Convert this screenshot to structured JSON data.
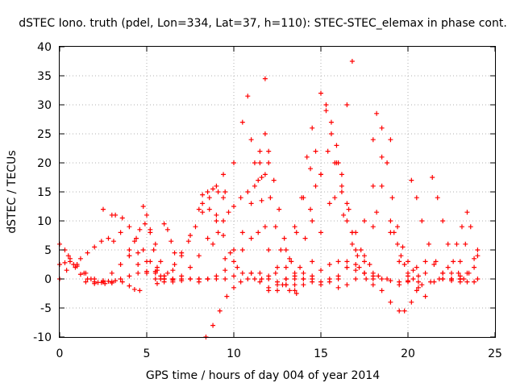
{
  "chart_data": {
    "type": "scatter",
    "title": "dSTEC Iono. truth (pdel, Lon=334, Lat=37, h=110): STEC-STEC_elemax in phase cont.",
    "xlabel": "GPS time / hours of day 004 of year 2014",
    "ylabel": "dSTEC  / TECUs",
    "xlim": [
      0,
      25
    ],
    "ylim": [
      -10,
      40
    ],
    "x_ticks": [
      "0",
      "5",
      "10",
      "15",
      "20",
      "25"
    ],
    "y_ticks": [
      "-10",
      "-5",
      "0",
      "5",
      "10",
      "15",
      "20",
      "25",
      "30",
      "35",
      "40"
    ],
    "grid": true,
    "marker": "+",
    "color": "#ff0000",
    "series": [
      {
        "x": [
          0,
          0.3,
          0.6,
          0.9,
          1.2,
          1.6,
          2.0,
          2.4,
          2.8,
          3.2,
          3.6,
          4.0,
          4.3,
          4.6
        ],
        "y": [
          6,
          5,
          3.5,
          2,
          0.8,
          0,
          -0.5,
          -0.6,
          -0.4,
          -0.3,
          -0.5,
          -1.2,
          -1.8,
          -2
        ]
      },
      {
        "x": [
          0,
          0.4,
          0.8,
          1.2,
          1.6,
          2.0,
          2.4,
          2.8,
          3.1
        ],
        "y": [
          0,
          1.5,
          2.5,
          3.5,
          4.5,
          5.5,
          6.5,
          7,
          6.5
        ]
      },
      {
        "x": [
          0,
          0.3,
          0.6,
          1.0,
          1.4,
          1.8,
          2.2,
          2.6,
          3.0
        ],
        "y": [
          2.5,
          2.8,
          3,
          2.2,
          1,
          0,
          -0.6,
          -0.8,
          -0.7
        ]
      },
      {
        "x": [
          0.5,
          1.0,
          1.5,
          2.0,
          2.5,
          3.0,
          3.5,
          4.0,
          4.5,
          5.0,
          5.5
        ],
        "y": [
          4,
          2.5,
          1,
          0,
          -0.5,
          -0.5,
          0,
          0.5,
          1,
          1.3,
          1.3
        ]
      },
      {
        "x": [
          1.5,
          2.0,
          2.5,
          3.0,
          3.5,
          4.0,
          4.5,
          5.0,
          5.5,
          6.0,
          6.5
        ],
        "y": [
          -0.5,
          -0.8,
          -0.3,
          1,
          2.5,
          4,
          4.5,
          3,
          1,
          0,
          -0.2
        ]
      },
      {
        "x": [
          2.5,
          3.0,
          3.5,
          4.0,
          4.5,
          5.0,
          5.5,
          6.0,
          6.5,
          7.0,
          7.5,
          8.0
        ],
        "y": [
          12,
          11,
          8,
          5,
          2.5,
          1,
          0,
          -0.5,
          -0.5,
          -0.3,
          0,
          0
        ]
      },
      {
        "x": [
          3.2,
          3.6,
          4.0,
          4.4,
          4.8,
          5.2,
          5.6,
          6.0,
          6.5
        ],
        "y": [
          11,
          10.5,
          9,
          7,
          5,
          3,
          1.5,
          0.5,
          0
        ]
      },
      {
        "x": [
          4.0,
          4.3,
          4.6,
          4.9,
          5.2,
          5.5,
          5.8,
          6.0
        ],
        "y": [
          4,
          6.5,
          8.5,
          9.5,
          8.5,
          6,
          3,
          0.5
        ]
      },
      {
        "x": [
          4.8,
          5.0,
          5.2,
          5.4,
          5.6,
          5.8,
          6.0,
          6.5,
          7.0,
          7.5,
          8.0,
          8.5
        ],
        "y": [
          12.5,
          11,
          8,
          5,
          2,
          0.5,
          0,
          0,
          0,
          0,
          0,
          0
        ]
      },
      {
        "x": [
          6.0,
          6.2,
          6.4,
          6.6
        ],
        "y": [
          9.5,
          8.5,
          6.5,
          4.5
        ]
      },
      {
        "x": [
          5.6,
          6.0,
          6.5,
          7.0,
          7.5,
          8.0,
          8.2
        ],
        "y": [
          -0.8,
          0,
          1.5,
          4,
          7.5,
          12,
          14.5
        ]
      },
      {
        "x": [
          5.8,
          6.2,
          6.6,
          7.0,
          7.4,
          7.8,
          8.2,
          8.6,
          9.0,
          9.4
        ],
        "y": [
          0,
          1,
          2.5,
          4.5,
          6.5,
          9,
          11.5,
          14,
          16,
          18
        ]
      },
      {
        "x": [
          6.5,
          7.0,
          7.5,
          8.0,
          8.5,
          9.0,
          9.5,
          10.0,
          10.5,
          10.8
        ],
        "y": [
          0,
          0.5,
          2,
          4,
          7,
          11,
          15,
          20,
          27,
          31.5
        ]
      },
      {
        "x": [
          8.5,
          9.0,
          9.5,
          10.0,
          10.5,
          11.0,
          11.5,
          12.0,
          12.5,
          13.0
        ],
        "y": [
          0,
          0,
          0,
          0.5,
          1,
          1,
          1,
          0.5,
          -0.5,
          -1
        ]
      },
      {
        "x": [
          8.4,
          8.8,
          9.2,
          9.6,
          10.0,
          10.4,
          10.8,
          11.2,
          11.6,
          12.0
        ],
        "y": [
          -10,
          -8,
          -5.5,
          -3,
          -1.5,
          -0.5,
          0,
          0,
          0,
          0
        ]
      },
      {
        "x": [
          8.2,
          8.6,
          9.0,
          9.4,
          9.8,
          10.2
        ],
        "y": [
          13,
          12,
          10,
          7.5,
          4.5,
          2
        ]
      },
      {
        "x": [
          8.5,
          8.8,
          9.1,
          9.4
        ],
        "y": [
          15,
          15.5,
          15,
          14
        ]
      },
      {
        "x": [
          8.8,
          9.1,
          9.4,
          9.7,
          10.0,
          10.4,
          10.8,
          11.2,
          11.6,
          12.0
        ],
        "y": [
          6,
          8,
          10,
          11.5,
          12.5,
          14,
          15,
          16,
          17.5,
          20
        ]
      },
      {
        "x": [
          8.0,
          8.5,
          9.0,
          9.5,
          10.0,
          10.5,
          11.0,
          11.4
        ],
        "y": [
          -0.5,
          0,
          0.5,
          1.5,
          3,
          5,
          7,
          8
        ]
      },
      {
        "x": [
          9.5,
          10.0,
          10.5,
          11.0,
          11.5,
          11.8
        ],
        "y": [
          3.5,
          5,
          8,
          13,
          22,
          34.5
        ]
      },
      {
        "x": [
          11.0,
          11.2,
          11.4,
          11.6,
          11.8,
          12.0,
          12.4,
          12.8,
          13.2,
          13.6
        ],
        "y": [
          24,
          20,
          17,
          13.5,
          9,
          5,
          1,
          -1,
          -2,
          -2.5
        ]
      },
      {
        "x": [
          11.5,
          11.8,
          12.1,
          12.4,
          12.7,
          13.0
        ],
        "y": [
          20,
          18,
          14,
          9,
          5,
          2
        ]
      },
      {
        "x": [
          11.8,
          12.0,
          12.3,
          12.6,
          12.9,
          13.2,
          13.5
        ],
        "y": [
          25,
          22,
          17,
          12,
          7,
          3.5,
          1
        ]
      },
      {
        "x": [
          11.0,
          11.5,
          12.0,
          12.5,
          13.0,
          13.5,
          14.0,
          14.5,
          15.0
        ],
        "y": [
          1,
          -0.5,
          -1.5,
          -2,
          -1,
          0,
          1,
          0.5,
          -1
        ]
      },
      {
        "x": [
          12.0,
          12.5,
          13.0,
          13.5,
          14.0,
          14.5,
          15.0,
          15.5,
          16.0
        ],
        "y": [
          -2,
          -1,
          0,
          0.5,
          0,
          -0.5,
          -0.5,
          0,
          0.5
        ]
      },
      {
        "x": [
          12.5,
          13.0,
          13.5,
          14.0,
          14.4,
          14.7
        ],
        "y": [
          2,
          5,
          9,
          14,
          19,
          22
        ]
      },
      {
        "x": [
          13.0,
          13.3,
          13.6,
          13.9,
          14.2,
          14.5
        ],
        "y": [
          0,
          3,
          8,
          14,
          21,
          26
        ]
      },
      {
        "x": [
          13.5,
          13.8,
          14.1,
          14.4,
          14.7,
          15.0
        ],
        "y": [
          -1,
          2,
          7,
          12,
          16,
          18
        ]
      },
      {
        "x": [
          13.5,
          14.0,
          14.5,
          15.0,
          15.5,
          16.0,
          16.5,
          17.0,
          17.5,
          18.0
        ],
        "y": [
          -2,
          -1,
          0,
          1.5,
          2.5,
          3,
          3,
          2.5,
          1,
          0
        ]
      },
      {
        "x": [
          14.0,
          14.5,
          15.0,
          15.5,
          16.0,
          16.5,
          16.8
        ],
        "y": [
          0,
          3,
          8,
          13,
          20,
          30,
          37.5
        ]
      },
      {
        "x": [
          14.5,
          15.0,
          15.4,
          15.8,
          16.2,
          16.6,
          17.0,
          17.5,
          18.0
        ],
        "y": [
          10,
          18,
          22,
          20,
          16,
          12,
          8,
          4,
          1
        ]
      },
      {
        "x": [
          15.0,
          15.3,
          15.6,
          15.9,
          16.2,
          16.5,
          16.8,
          17.2,
          17.6
        ],
        "y": [
          32,
          29,
          25,
          20,
          15,
          10,
          6,
          2,
          0
        ]
      },
      {
        "x": [
          15.3,
          15.6,
          15.9,
          16.2,
          16.5,
          16.8,
          17.1,
          17.5
        ],
        "y": [
          30,
          27,
          23,
          18,
          13,
          8,
          4,
          1
        ]
      },
      {
        "x": [
          15.5,
          16.0,
          16.5,
          17.0,
          17.5,
          18.0,
          18.5,
          19.0
        ],
        "y": [
          -0.5,
          0,
          2,
          5,
          10,
          16,
          21,
          24
        ]
      },
      {
        "x": [
          16.0,
          16.5,
          17.0,
          17.5,
          18.0,
          18.2
        ],
        "y": [
          -1.5,
          -1,
          0,
          3,
          9,
          11.5
        ]
      },
      {
        "x": [
          15.8,
          16.3,
          16.8,
          17.3,
          17.8,
          18.3,
          18.8
        ],
        "y": [
          14,
          11,
          8,
          5,
          2.5,
          0.5,
          0
        ]
      },
      {
        "x": [
          16.5,
          17.0,
          17.5,
          18.0,
          18.5,
          19.0,
          19.5,
          20.0
        ],
        "y": [
          2,
          1.5,
          1,
          0.5,
          0,
          -0.3,
          -0.5,
          -0.3
        ]
      },
      {
        "x": [
          18.2,
          18.5,
          18.8,
          19.1,
          19.4,
          19.7,
          20.0,
          20.3,
          20.6
        ],
        "y": [
          28.5,
          26,
          20,
          14,
          9,
          5.5,
          3,
          1.5,
          0.5
        ]
      },
      {
        "x": [
          18.0,
          18.5,
          19.0,
          19.5,
          20.0,
          20.5,
          21.0
        ],
        "y": [
          24,
          16,
          8,
          3,
          -0.5,
          -2,
          -3
        ]
      },
      {
        "x": [
          19.0,
          19.2,
          19.4,
          19.6,
          19.8,
          20.0,
          20.3,
          20.6
        ],
        "y": [
          10,
          8,
          6,
          4,
          2.5,
          1,
          0,
          -0.5
        ]
      },
      {
        "x": [
          18.0,
          18.5,
          19.0,
          19.5,
          19.8,
          20.2,
          20.6,
          21.0
        ],
        "y": [
          -1,
          -2,
          -4,
          -5.5,
          -5.5,
          -4,
          -1.5,
          1
        ]
      },
      {
        "x": [
          19.5,
          20.0,
          20.5,
          21.0,
          21.5,
          22.0,
          22.5,
          23.0
        ],
        "y": [
          -1,
          0.5,
          2,
          3,
          2.5,
          1,
          0,
          -0.5
        ]
      },
      {
        "x": [
          20.2,
          20.5,
          20.8,
          21.2,
          21.6,
          22.0,
          22.5,
          23.0
        ],
        "y": [
          17,
          14,
          10,
          6,
          3,
          1,
          0,
          0
        ]
      },
      {
        "x": [
          21.4,
          21.7,
          22.0,
          22.3,
          22.6,
          22.9,
          23.2
        ],
        "y": [
          17.5,
          14,
          10,
          6,
          3,
          1,
          0
        ]
      },
      {
        "x": [
          20.8,
          21.3,
          21.8,
          22.3,
          22.8,
          23.1,
          23.4
        ],
        "y": [
          -1,
          -0.5,
          0,
          2,
          6,
          9,
          11.5
        ]
      },
      {
        "x": [
          21.5,
          22.0,
          22.5,
          23.0,
          23.3,
          23.6
        ],
        "y": [
          -0.5,
          0,
          1,
          3,
          6,
          9
        ]
      },
      {
        "x": [
          22.0,
          22.5,
          23.0,
          23.5,
          23.8,
          24.0
        ],
        "y": [
          0,
          0,
          0.5,
          1,
          2,
          4
        ]
      },
      {
        "x": [
          22.5,
          23.0,
          23.4,
          23.8,
          24.0
        ],
        "y": [
          -0.3,
          0,
          1,
          3.5,
          5
        ]
      },
      {
        "x": [
          23.0,
          23.4,
          23.8,
          24.0
        ],
        "y": [
          0,
          -0.5,
          -0.5,
          0
        ]
      }
    ]
  }
}
